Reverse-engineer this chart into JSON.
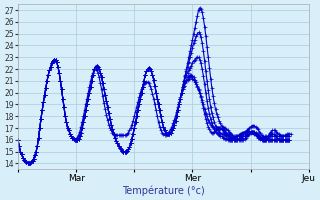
{
  "title": "",
  "xlabel": "Température (°c)",
  "ylabel": "",
  "background_color": "#d8eef8",
  "grid_color": "#aaccdd",
  "line_color": "#0000cc",
  "marker": "+",
  "ylim": [
    13.5,
    27.5
  ],
  "yticks": [
    14,
    15,
    16,
    17,
    18,
    19,
    20,
    21,
    22,
    23,
    24,
    25,
    26,
    27
  ],
  "xtick_labels": [
    "",
    "Mar",
    "",
    "Mer",
    "",
    "Jeu"
  ],
  "xtick_positions": [
    0,
    48,
    96,
    144,
    192,
    240
  ],
  "total_points": 241,
  "lines": [
    [
      16.0,
      15.5,
      15.0,
      14.8,
      14.5,
      14.3,
      14.2,
      14.1,
      14.0,
      14.0,
      14.0,
      14.1,
      14.2,
      14.4,
      14.7,
      15.0,
      15.5,
      16.2,
      17.0,
      17.8,
      18.5,
      19.2,
      19.8,
      20.4,
      21.0,
      21.5,
      21.9,
      22.2,
      22.5,
      22.7,
      22.8,
      22.8,
      22.6,
      22.2,
      21.7,
      21.0,
      20.3,
      19.5,
      18.8,
      18.0,
      17.5,
      17.0,
      16.8,
      16.5,
      16.3,
      16.2,
      16.1,
      16.0,
      16.0,
      16.0,
      16.1,
      16.3,
      16.6,
      17.0,
      17.5,
      18.0,
      18.5,
      19.0,
      19.5,
      20.0,
      20.5,
      21.0,
      21.5,
      22.0,
      22.2,
      22.3,
      22.2,
      22.0,
      21.7,
      21.3,
      20.8,
      20.3,
      19.8,
      19.3,
      18.8,
      18.3,
      17.8,
      17.3,
      16.9,
      16.5,
      16.2,
      15.9,
      15.7,
      15.5,
      15.3,
      15.2,
      15.1,
      15.0,
      15.0,
      15.0,
      15.1,
      15.2,
      15.4,
      15.7,
      16.1,
      16.5,
      17.0,
      17.5,
      18.0,
      18.5,
      19.0,
      19.5,
      20.0,
      20.5,
      21.0,
      21.5,
      21.8,
      22.0,
      22.1,
      22.0,
      21.8,
      21.5,
      21.1,
      20.6,
      20.0,
      19.5,
      19.0,
      18.5,
      18.0,
      17.5,
      17.1,
      16.8,
      16.6,
      16.5,
      16.5,
      16.5,
      16.6,
      16.8,
      17.0,
      17.3,
      17.6,
      18.0,
      18.5,
      19.0,
      19.5,
      20.0,
      20.5,
      21.0,
      21.5,
      22.0,
      22.5,
      23.0,
      23.5,
      24.0,
      24.5,
      25.0,
      25.5,
      26.0,
      26.5,
      27.0,
      27.2,
      27.1,
      26.8,
      26.3,
      25.6,
      24.8,
      23.9,
      23.0,
      22.1,
      21.2,
      20.4,
      19.7,
      19.1,
      18.6,
      18.2,
      17.9,
      17.6,
      17.4,
      17.2,
      17.1,
      17.0,
      17.0,
      16.9,
      16.8,
      16.7,
      16.6,
      16.5,
      16.4,
      16.3,
      16.3,
      16.3,
      16.3,
      16.3,
      16.3,
      16.4,
      16.4,
      16.5,
      16.6,
      16.7,
      16.8,
      16.9,
      17.0,
      17.1,
      17.2,
      17.2,
      17.2,
      17.1,
      17.0,
      16.9,
      16.7,
      16.6,
      16.4,
      16.3,
      16.2,
      16.2,
      16.2,
      16.3,
      16.4,
      16.6,
      16.7,
      16.8,
      16.8,
      16.8,
      16.7,
      16.6,
      16.5,
      16.4,
      16.3,
      16.3,
      16.3,
      16.4,
      16.4,
      16.5,
      16.5,
      16.5,
      16.5
    ],
    [
      16.0,
      15.5,
      15.0,
      14.8,
      14.5,
      14.3,
      14.2,
      14.1,
      14.0,
      14.0,
      14.0,
      14.1,
      14.2,
      14.4,
      14.7,
      15.0,
      15.5,
      16.2,
      17.0,
      17.8,
      18.5,
      19.2,
      19.8,
      20.4,
      21.0,
      21.5,
      21.9,
      22.2,
      22.5,
      22.7,
      22.8,
      22.8,
      22.6,
      22.2,
      21.7,
      21.0,
      20.3,
      19.5,
      18.8,
      18.0,
      17.5,
      17.0,
      16.8,
      16.5,
      16.3,
      16.2,
      16.1,
      16.0,
      16.0,
      16.0,
      16.1,
      16.3,
      16.6,
      17.0,
      17.5,
      18.0,
      18.5,
      19.0,
      19.5,
      20.0,
      20.5,
      21.0,
      21.5,
      22.0,
      22.2,
      22.3,
      22.2,
      22.0,
      21.7,
      21.3,
      20.8,
      20.3,
      19.8,
      19.3,
      18.8,
      18.3,
      17.8,
      17.3,
      16.9,
      16.5,
      16.2,
      15.9,
      15.7,
      15.5,
      15.3,
      15.2,
      15.1,
      15.0,
      15.0,
      15.0,
      15.1,
      15.2,
      15.4,
      15.7,
      16.1,
      16.5,
      17.0,
      17.5,
      18.0,
      18.5,
      19.0,
      19.5,
      20.0,
      20.5,
      21.0,
      21.5,
      21.8,
      22.0,
      22.1,
      22.0,
      21.8,
      21.5,
      21.1,
      20.6,
      20.0,
      19.5,
      19.0,
      18.5,
      18.0,
      17.5,
      17.1,
      16.8,
      16.6,
      16.5,
      16.5,
      16.5,
      16.6,
      16.8,
      17.0,
      17.3,
      17.6,
      18.0,
      18.5,
      19.0,
      19.5,
      20.0,
      20.5,
      21.0,
      21.4,
      21.8,
      22.2,
      22.6,
      23.0,
      23.4,
      23.8,
      24.2,
      24.5,
      24.8,
      25.0,
      25.1,
      25.0,
      24.7,
      24.2,
      23.5,
      22.7,
      21.8,
      21.0,
      20.2,
      19.5,
      18.8,
      18.3,
      17.9,
      17.5,
      17.2,
      17.0,
      16.8,
      16.7,
      16.6,
      16.5,
      16.5,
      16.5,
      16.4,
      16.3,
      16.2,
      16.1,
      16.0,
      16.0,
      16.0,
      16.0,
      16.0,
      16.0,
      16.0,
      16.0,
      16.0,
      16.0,
      16.0,
      16.0,
      16.1,
      16.2,
      16.3,
      16.4,
      16.5,
      16.6,
      16.7,
      16.7,
      16.7,
      16.6,
      16.5,
      16.4,
      16.3,
      16.2,
      16.1,
      16.0,
      16.0,
      16.0,
      16.1,
      16.2,
      16.3,
      16.4,
      16.5,
      16.5,
      16.5,
      16.4,
      16.3,
      16.2,
      16.1,
      16.0,
      16.0,
      16.0,
      16.0,
      16.0,
      16.0,
      16.0,
      16.0,
      16.0
    ],
    [
      16.0,
      15.5,
      15.0,
      14.8,
      14.5,
      14.3,
      14.2,
      14.1,
      14.0,
      14.0,
      14.0,
      14.1,
      14.2,
      14.4,
      14.7,
      15.0,
      15.5,
      16.2,
      17.0,
      17.8,
      18.5,
      19.2,
      19.8,
      20.4,
      21.0,
      21.5,
      21.9,
      22.2,
      22.5,
      22.7,
      22.8,
      22.8,
      22.6,
      22.2,
      21.7,
      21.0,
      20.3,
      19.5,
      18.8,
      18.0,
      17.5,
      17.0,
      16.8,
      16.5,
      16.3,
      16.2,
      16.1,
      16.0,
      16.0,
      16.0,
      16.1,
      16.3,
      16.6,
      17.0,
      17.5,
      18.0,
      18.5,
      19.0,
      19.5,
      20.0,
      20.5,
      21.0,
      21.5,
      22.0,
      22.2,
      22.3,
      22.2,
      22.0,
      21.7,
      21.3,
      20.8,
      20.3,
      19.8,
      19.3,
      18.8,
      18.3,
      17.8,
      17.3,
      16.9,
      16.5,
      16.2,
      15.9,
      15.7,
      15.5,
      15.3,
      15.2,
      15.1,
      15.0,
      15.0,
      15.0,
      15.1,
      15.2,
      15.4,
      15.7,
      16.1,
      16.5,
      17.0,
      17.5,
      18.0,
      18.5,
      19.0,
      19.5,
      20.0,
      20.5,
      21.0,
      21.5,
      21.8,
      22.0,
      22.1,
      22.0,
      21.8,
      21.5,
      21.1,
      20.6,
      20.0,
      19.5,
      19.0,
      18.5,
      18.0,
      17.5,
      17.1,
      16.8,
      16.6,
      16.5,
      16.5,
      16.5,
      16.6,
      16.8,
      17.0,
      17.3,
      17.6,
      18.0,
      18.5,
      19.0,
      19.5,
      20.0,
      20.5,
      21.0,
      21.3,
      21.5,
      21.7,
      21.9,
      22.1,
      22.3,
      22.5,
      22.7,
      22.8,
      22.9,
      23.0,
      23.0,
      22.8,
      22.5,
      22.0,
      21.4,
      20.7,
      20.0,
      19.3,
      18.7,
      18.2,
      17.8,
      17.4,
      17.1,
      16.9,
      16.7,
      16.6,
      16.5,
      16.4,
      16.3,
      16.3,
      16.2,
      16.2,
      16.1,
      16.1,
      16.0,
      16.0,
      16.0,
      16.0,
      16.0,
      16.0,
      16.0,
      16.0,
      16.0,
      16.1,
      16.1,
      16.2,
      16.2,
      16.3,
      16.3,
      16.4,
      16.5,
      16.5,
      16.6,
      16.7,
      16.7,
      16.7,
      16.7,
      16.6,
      16.5,
      16.4,
      16.3,
      16.2,
      16.1,
      16.0,
      16.0,
      16.0,
      16.0,
      16.0,
      16.0,
      16.0,
      16.0,
      16.0,
      16.0,
      16.0,
      16.0,
      16.0,
      16.0,
      16.0,
      16.0,
      16.0,
      16.0,
      16.0,
      16.0,
      16.0,
      16.0,
      16.0
    ],
    [
      16.0,
      15.5,
      15.0,
      14.8,
      14.5,
      14.3,
      14.2,
      14.1,
      14.0,
      14.0,
      14.0,
      14.1,
      14.2,
      14.4,
      14.7,
      15.0,
      15.5,
      16.2,
      17.0,
      17.8,
      18.5,
      19.2,
      19.8,
      20.4,
      21.0,
      21.5,
      21.9,
      22.2,
      22.5,
      22.7,
      22.8,
      22.8,
      22.6,
      22.2,
      21.7,
      21.0,
      20.3,
      19.5,
      18.8,
      18.0,
      17.5,
      17.0,
      16.8,
      16.5,
      16.3,
      16.2,
      16.1,
      16.0,
      16.0,
      16.0,
      16.1,
      16.3,
      16.6,
      17.0,
      17.5,
      18.0,
      18.5,
      19.0,
      19.5,
      20.0,
      20.5,
      21.0,
      21.5,
      22.0,
      22.2,
      22.3,
      22.2,
      22.0,
      21.7,
      21.3,
      20.8,
      20.3,
      19.8,
      19.3,
      18.8,
      18.3,
      17.8,
      17.3,
      16.9,
      16.5,
      16.2,
      15.9,
      15.7,
      15.5,
      15.3,
      15.2,
      15.1,
      15.0,
      15.0,
      15.0,
      15.1,
      15.2,
      15.4,
      15.7,
      16.1,
      16.5,
      17.0,
      17.5,
      18.0,
      18.5,
      19.0,
      19.5,
      20.0,
      20.5,
      21.0,
      21.5,
      21.8,
      22.0,
      22.1,
      22.0,
      21.8,
      21.5,
      21.1,
      20.6,
      20.0,
      19.5,
      19.0,
      18.5,
      18.0,
      17.5,
      17.1,
      16.8,
      16.6,
      16.5,
      16.5,
      16.5,
      16.6,
      16.8,
      17.0,
      17.3,
      17.6,
      18.0,
      18.5,
      19.0,
      19.5,
      20.0,
      20.3,
      20.6,
      20.9,
      21.1,
      21.3,
      21.4,
      21.5,
      21.5,
      21.4,
      21.3,
      21.1,
      20.9,
      20.6,
      20.3,
      20.0,
      19.6,
      19.2,
      18.7,
      18.2,
      17.8,
      17.4,
      17.1,
      16.9,
      16.7,
      16.6,
      16.6,
      16.7,
      16.8,
      16.9,
      17.0,
      17.0,
      17.0,
      17.0,
      16.9,
      16.8,
      16.7,
      16.6,
      16.5,
      16.4,
      16.3,
      16.2,
      16.1,
      16.1,
      16.1,
      16.1,
      16.2,
      16.3,
      16.4,
      16.5,
      16.5,
      16.6,
      16.6,
      16.6,
      16.7,
      16.7,
      16.7,
      16.7,
      16.7,
      16.7,
      16.6,
      16.5,
      16.4,
      16.3,
      16.2,
      16.1,
      16.0,
      16.0,
      16.0,
      16.0,
      16.0,
      16.0,
      16.0,
      16.0,
      16.0,
      16.0,
      16.0,
      16.0,
      16.0,
      16.0,
      16.0,
      16.0,
      16.0,
      16.0,
      16.0,
      16.0,
      16.0,
      16.0,
      16.0,
      16.0
    ],
    [
      16.0,
      15.5,
      15.0,
      14.8,
      14.5,
      14.3,
      14.2,
      14.1,
      14.0,
      14.0,
      14.0,
      14.1,
      14.2,
      14.4,
      14.7,
      15.0,
      15.5,
      16.2,
      17.0,
      17.8,
      18.5,
      19.2,
      19.8,
      20.4,
      21.0,
      21.5,
      21.9,
      22.2,
      22.5,
      22.7,
      22.8,
      22.8,
      22.6,
      22.2,
      21.7,
      21.0,
      20.3,
      19.5,
      18.8,
      18.0,
      17.5,
      17.0,
      16.8,
      16.5,
      16.3,
      16.2,
      16.1,
      16.0,
      16.1,
      16.2,
      16.4,
      16.7,
      17.1,
      17.5,
      18.0,
      18.5,
      19.0,
      19.5,
      20.0,
      20.5,
      21.0,
      21.4,
      21.7,
      21.9,
      22.0,
      21.9,
      21.7,
      21.3,
      20.8,
      20.3,
      19.7,
      19.1,
      18.6,
      18.1,
      17.7,
      17.3,
      17.0,
      16.8,
      16.6,
      16.5,
      16.4,
      16.4,
      16.4,
      16.4,
      16.4,
      16.4,
      16.4,
      16.4,
      16.4,
      16.4,
      16.5,
      16.6,
      16.8,
      17.0,
      17.3,
      17.6,
      18.0,
      18.4,
      18.8,
      19.2,
      19.6,
      20.0,
      20.3,
      20.5,
      20.7,
      20.8,
      20.9,
      20.9,
      20.8,
      20.6,
      20.3,
      19.9,
      19.5,
      19.0,
      18.5,
      18.0,
      17.5,
      17.1,
      16.8,
      16.6,
      16.5,
      16.4,
      16.4,
      16.5,
      16.6,
      16.7,
      16.9,
      17.1,
      17.4,
      17.7,
      18.0,
      18.4,
      18.8,
      19.2,
      19.6,
      20.0,
      20.3,
      20.6,
      20.8,
      21.0,
      21.1,
      21.2,
      21.3,
      21.3,
      21.2,
      21.1,
      20.9,
      20.7,
      20.5,
      20.2,
      20.0,
      19.7,
      19.4,
      19.0,
      18.6,
      18.3,
      18.0,
      17.7,
      17.5,
      17.3,
      17.2,
      17.1,
      17.0,
      17.0,
      17.0,
      17.0,
      17.0,
      17.0,
      16.9,
      16.8,
      16.7,
      16.6,
      16.5,
      16.4,
      16.3,
      16.2,
      16.2,
      16.2,
      16.2,
      16.2,
      16.3,
      16.3,
      16.4,
      16.5,
      16.5,
      16.6,
      16.6,
      16.7,
      16.7,
      16.7,
      16.7,
      16.7,
      16.7,
      16.7,
      16.6,
      16.5,
      16.4,
      16.3,
      16.2,
      16.2,
      16.2,
      16.2,
      16.2,
      16.2,
      16.3,
      16.3,
      16.3,
      16.3,
      16.3,
      16.3,
      16.3,
      16.3,
      16.3,
      16.3,
      16.3,
      16.3,
      16.3,
      16.3,
      16.3,
      16.3,
      16.3,
      16.3,
      16.3,
      16.3,
      16.3
    ]
  ]
}
